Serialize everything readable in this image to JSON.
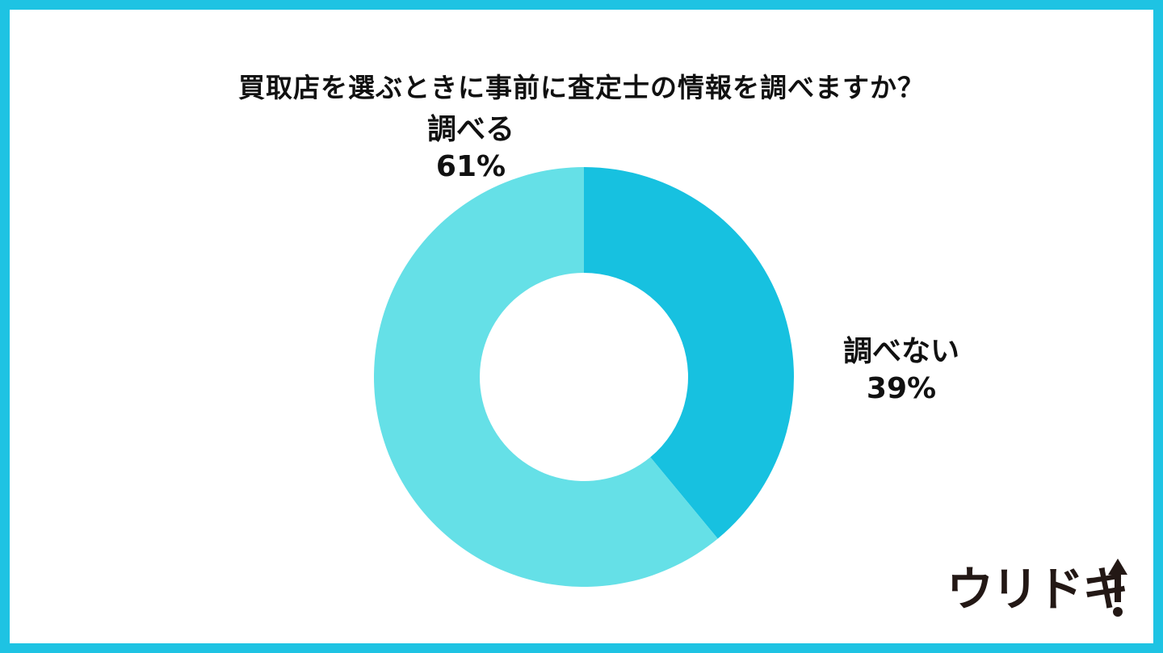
{
  "chart_data": {
    "type": "pie",
    "title": "買取店を選ぶときに事前に査定士の情報を調べますか？",
    "slices": [
      {
        "label": "調べない",
        "value": 39,
        "value_label": "39%",
        "color": "#17c1e0"
      },
      {
        "label": "調べる",
        "value": 61,
        "value_label": "61%",
        "color": "#65e0e7"
      }
    ],
    "donut": true
  },
  "colors": {
    "border": "#1ec3e3",
    "background": "#ffffff",
    "text": "#111111"
  },
  "logo": {
    "text": "ウリドキ",
    "icon": "up-arrow-exclamation-icon"
  }
}
